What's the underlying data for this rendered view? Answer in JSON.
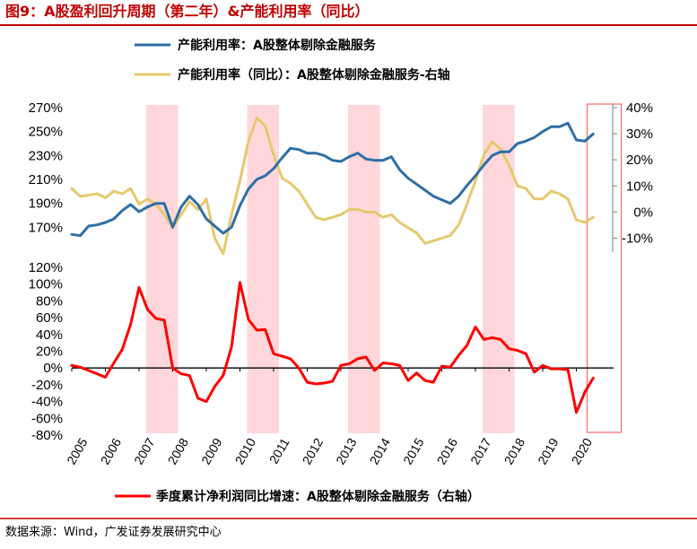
{
  "title": "图9：A股盈利回升周期（第二年）&产能利用率（同比）",
  "source": "数据来源：Wind，广发证券发展研究中心",
  "colors": {
    "blue": "#2e6ea6",
    "yellow": "#e6c86e",
    "red": "#ff0000",
    "shade": "#ffd7da",
    "title": "#c00000",
    "box": "#ff6666"
  },
  "chart_data": {
    "type": "line",
    "shaded_periods": [
      [
        2007.0,
        2008.0
      ],
      [
        2010.0,
        2011.0
      ],
      [
        2013.0,
        2014.0
      ],
      [
        2017.0,
        2018.0
      ]
    ],
    "highlight_box": [
      2020.0,
      2021.0
    ],
    "x_tick_labels": [
      "2005",
      "2006",
      "2007",
      "2008",
      "2009",
      "2010",
      "2011",
      "2012",
      "2013",
      "2014",
      "2015",
      "2016",
      "2017",
      "2018",
      "2019",
      "2020"
    ],
    "top_panel": {
      "left_axis": {
        "range": [
          150,
          270
        ],
        "ticks": [
          "270%",
          "250%",
          "230%",
          "210%",
          "190%",
          "170%"
        ],
        "tick_values": [
          270,
          250,
          230,
          210,
          190,
          170
        ]
      },
      "right_axis": {
        "range": [
          -15,
          40
        ],
        "ticks": [
          "40%",
          "30%",
          "20%",
          "10%",
          "0%",
          "-10%"
        ],
        "tick_values": [
          40,
          30,
          20,
          10,
          0,
          -10
        ]
      },
      "series": [
        {
          "name": "产能利用率：A股整体剔除金融服务",
          "axis": "left",
          "x": [
            2005.0,
            2005.25,
            2005.5,
            2005.75,
            2006.0,
            2006.25,
            2006.5,
            2006.75,
            2007.0,
            2007.25,
            2007.5,
            2007.75,
            2008.0,
            2008.25,
            2008.5,
            2008.75,
            2009.0,
            2009.25,
            2009.5,
            2009.75,
            2010.0,
            2010.25,
            2010.5,
            2010.75,
            2011.0,
            2011.25,
            2011.5,
            2011.75,
            2012.0,
            2012.25,
            2012.5,
            2012.75,
            2013.0,
            2013.25,
            2013.5,
            2013.75,
            2014.0,
            2014.25,
            2014.5,
            2014.75,
            2015.0,
            2015.25,
            2015.5,
            2015.75,
            2016.0,
            2016.25,
            2016.5,
            2016.75,
            2017.0,
            2017.25,
            2017.5,
            2017.75,
            2018.0,
            2018.25,
            2018.5,
            2018.75,
            2019.0,
            2019.25,
            2019.5,
            2019.75,
            2020.0,
            2020.25,
            2020.5
          ],
          "values": [
            164,
            163,
            171,
            172,
            174,
            177,
            184,
            189,
            183,
            187,
            190,
            190,
            170,
            187,
            196,
            189,
            177,
            171,
            165,
            170,
            188,
            202,
            210,
            213,
            219,
            228,
            236,
            235,
            232,
            232,
            230,
            226,
            225,
            229,
            232,
            227,
            226,
            226,
            229,
            218,
            211,
            206,
            201,
            196,
            193,
            190,
            196,
            205,
            213,
            222,
            230,
            233,
            233,
            240,
            242,
            245,
            250,
            254,
            254,
            257,
            243,
            242,
            248
          ]
        },
        {
          "name": "产能利用率（同比）：A股整体剔除金融服务-右轴",
          "axis": "right",
          "x": [
            2005.0,
            2005.25,
            2005.5,
            2005.75,
            2006.0,
            2006.25,
            2006.5,
            2006.75,
            2007.0,
            2007.25,
            2007.5,
            2007.75,
            2008.0,
            2008.25,
            2008.5,
            2008.75,
            2009.0,
            2009.25,
            2009.5,
            2009.75,
            2010.0,
            2010.25,
            2010.5,
            2010.75,
            2011.0,
            2011.25,
            2011.5,
            2011.75,
            2012.0,
            2012.25,
            2012.5,
            2012.75,
            2013.0,
            2013.25,
            2013.5,
            2013.75,
            2014.0,
            2014.25,
            2014.5,
            2014.75,
            2015.0,
            2015.25,
            2015.5,
            2015.75,
            2016.0,
            2016.25,
            2016.5,
            2016.75,
            2017.0,
            2017.25,
            2017.5,
            2017.75,
            2018.0,
            2018.25,
            2018.5,
            2018.75,
            2019.0,
            2019.25,
            2019.5,
            2019.75,
            2020.0,
            2020.25,
            2020.5
          ],
          "values": [
            9,
            6,
            6.5,
            7,
            5.5,
            8,
            7,
            9,
            3,
            5,
            3,
            -1,
            -6,
            -1,
            4,
            1,
            5,
            -10,
            -16,
            -1,
            12,
            27,
            36,
            33,
            22,
            13,
            11,
            8,
            3,
            -2,
            -3,
            -2,
            -1,
            1,
            1,
            0,
            0,
            -2,
            -1,
            -4,
            -6,
            -8,
            -12,
            -11,
            -10,
            -9,
            -5,
            3,
            12,
            22,
            27,
            24,
            18,
            10,
            9,
            5,
            5,
            8,
            7,
            5,
            -3,
            -4,
            -2
          ]
        }
      ]
    },
    "bottom_panel": {
      "axis": {
        "range": [
          -80,
          120
        ],
        "ticks": [
          "120%",
          "100%",
          "80%",
          "60%",
          "40%",
          "20%",
          "0%",
          "-20%",
          "-40%",
          "-60%",
          "-80%"
        ],
        "tick_values": [
          120,
          100,
          80,
          60,
          40,
          20,
          0,
          -20,
          -40,
          -60,
          -80
        ]
      },
      "series": [
        {
          "name": "季度累计净利润同比增速：A股整体剔除金融服务（右轴）",
          "x": [
            2005.0,
            2005.25,
            2005.5,
            2005.75,
            2006.0,
            2006.25,
            2006.5,
            2006.75,
            2007.0,
            2007.25,
            2007.5,
            2007.75,
            2008.0,
            2008.25,
            2008.5,
            2008.75,
            2009.0,
            2009.25,
            2009.5,
            2009.75,
            2010.0,
            2010.25,
            2010.5,
            2010.75,
            2011.0,
            2011.25,
            2011.5,
            2011.75,
            2012.0,
            2012.25,
            2012.5,
            2012.75,
            2013.0,
            2013.25,
            2013.5,
            2013.75,
            2014.0,
            2014.25,
            2014.5,
            2014.75,
            2015.0,
            2015.25,
            2015.5,
            2015.75,
            2016.0,
            2016.25,
            2016.5,
            2016.75,
            2017.0,
            2017.25,
            2017.5,
            2017.75,
            2018.0,
            2018.25,
            2018.5,
            2018.75,
            2019.0,
            2019.25,
            2019.5,
            2019.75,
            2020.0,
            2020.25,
            2020.5
          ],
          "values": [
            3,
            1,
            -3,
            -7,
            -11,
            6,
            22,
            52,
            96,
            70,
            59,
            57,
            0,
            -7,
            -9,
            -36,
            -40,
            -22,
            -9,
            25,
            102,
            58,
            45,
            46,
            17,
            14,
            11,
            0,
            -17,
            -19,
            -18,
            -16,
            3,
            5,
            11,
            13,
            -3,
            6,
            5,
            3,
            -15,
            -6,
            -15,
            -17,
            2,
            1,
            15,
            27,
            49,
            34,
            36,
            34,
            23,
            21,
            17,
            -5,
            3,
            -1,
            -1,
            -2,
            -53,
            -29,
            -12
          ]
        }
      ]
    },
    "legend": [
      "产能利用率：A股整体剔除金融服务",
      "产能利用率（同比）：A股整体剔除金融服务-右轴",
      "季度累计净利润同比增速：A股整体剔除金融服务（右轴）"
    ]
  }
}
